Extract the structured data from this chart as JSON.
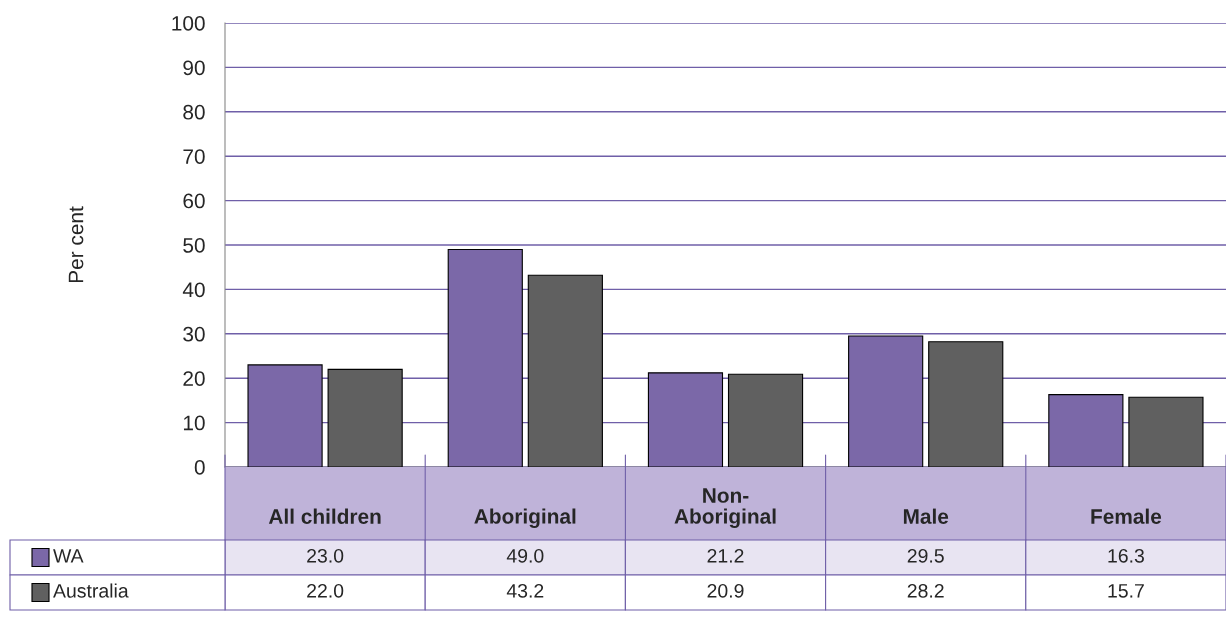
{
  "chart_data": {
    "type": "bar",
    "ylabel": "Per cent",
    "categories": [
      "All children",
      "Aboriginal",
      "Non-\nAboriginal",
      "Male",
      "Female"
    ],
    "series": [
      {
        "name": "WA",
        "color": "#7b68a8",
        "values": [
          23.0,
          49.0,
          21.2,
          29.5,
          16.3
        ],
        "value_labels": [
          "23.0",
          "49.0",
          "21.2",
          "29.5",
          "16.3"
        ]
      },
      {
        "name": "Australia",
        "color": "#606060",
        "values": [
          22.0,
          43.2,
          20.9,
          28.2,
          15.7
        ],
        "value_labels": [
          "22.0",
          "43.2",
          "20.9",
          "28.2",
          "15.7"
        ]
      }
    ],
    "ylim": [
      0,
      100
    ],
    "yticks": [
      0,
      10,
      20,
      30,
      40,
      50,
      60,
      70,
      80,
      90,
      100
    ],
    "grid": "y",
    "legend": "bottom"
  }
}
